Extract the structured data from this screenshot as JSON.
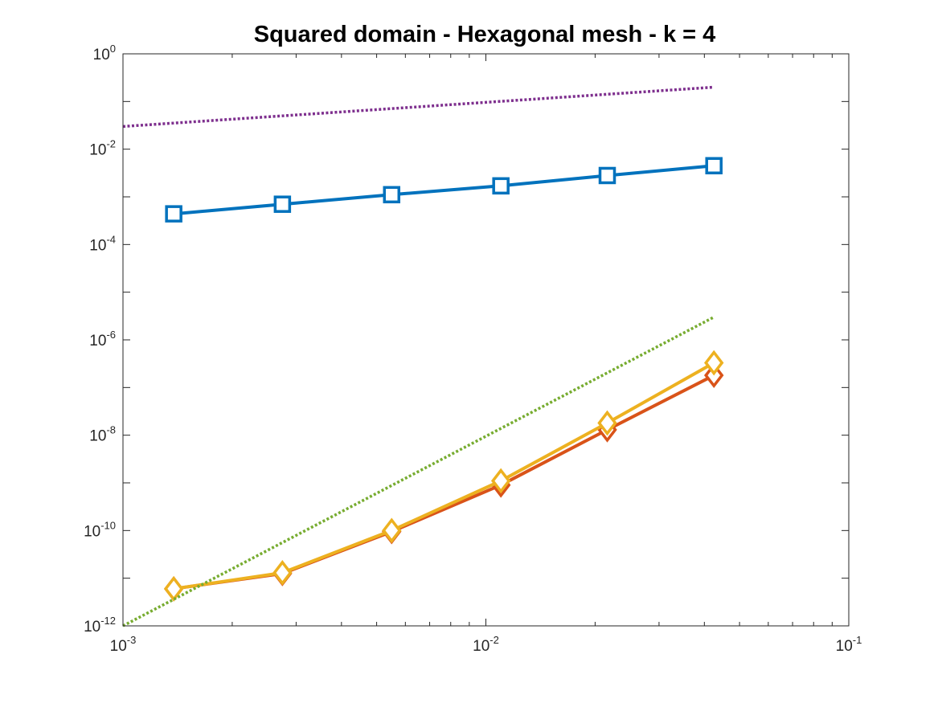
{
  "chart_data": {
    "type": "line",
    "title": "Squared domain - Hexagonal mesh - k = 4",
    "xlabel": "",
    "ylabel": "",
    "xscale": "log",
    "yscale": "log",
    "xlim": [
      0.001,
      0.1
    ],
    "ylim": [
      1e-12,
      1
    ],
    "grid": false,
    "legend": "none",
    "x_ticks": [
      {
        "base": "10",
        "exp": "-3",
        "value": 0.001
      },
      {
        "base": "10",
        "exp": "-2",
        "value": 0.01
      },
      {
        "base": "10",
        "exp": "-1",
        "value": 0.1
      }
    ],
    "y_ticks": [
      {
        "base": "10",
        "exp": "0",
        "value": 1
      },
      {
        "base": "10",
        "exp": "-2",
        "value": 0.01
      },
      {
        "base": "10",
        "exp": "-4",
        "value": 0.0001
      },
      {
        "base": "10",
        "exp": "-6",
        "value": 1e-06
      },
      {
        "base": "10",
        "exp": "-8",
        "value": 1e-08
      },
      {
        "base": "10",
        "exp": "-10",
        "value": 1e-10
      },
      {
        "base": "10",
        "exp": "-12",
        "value": 1e-12
      }
    ],
    "series": [
      {
        "color": "#0072BD",
        "style": "solid",
        "marker": "square",
        "x": [
          0.00138,
          0.00275,
          0.0055,
          0.011,
          0.0216,
          0.0425
        ],
        "y": [
          0.00044,
          0.0007,
          0.00111,
          0.0017,
          0.0028,
          0.0045
        ]
      },
      {
        "color": "#D95319",
        "style": "solid",
        "marker": "diamond",
        "x": [
          0.00138,
          0.00275,
          0.0055,
          0.011,
          0.0216,
          0.0425
        ],
        "y": [
          6e-12,
          1.25e-11,
          9.5e-11,
          9e-10,
          1.3e-08,
          1.8e-07
        ]
      },
      {
        "color": "#EDB120",
        "style": "solid",
        "marker": "diamond",
        "x": [
          0.00138,
          0.00275,
          0.0055,
          0.011,
          0.0216,
          0.0425
        ],
        "y": [
          6e-12,
          1.3e-11,
          1e-10,
          1.1e-09,
          1.8e-08,
          3.3e-07
        ]
      },
      {
        "color": "#7E2F8E",
        "style": "dotted",
        "marker": "none",
        "x": [
          0.001,
          0.0425
        ],
        "y": [
          0.03,
          0.2
        ]
      },
      {
        "color": "#77AC30",
        "style": "dotted",
        "marker": "none",
        "x": [
          0.001,
          0.0425
        ],
        "y": [
          1e-12,
          3e-06
        ]
      }
    ]
  }
}
